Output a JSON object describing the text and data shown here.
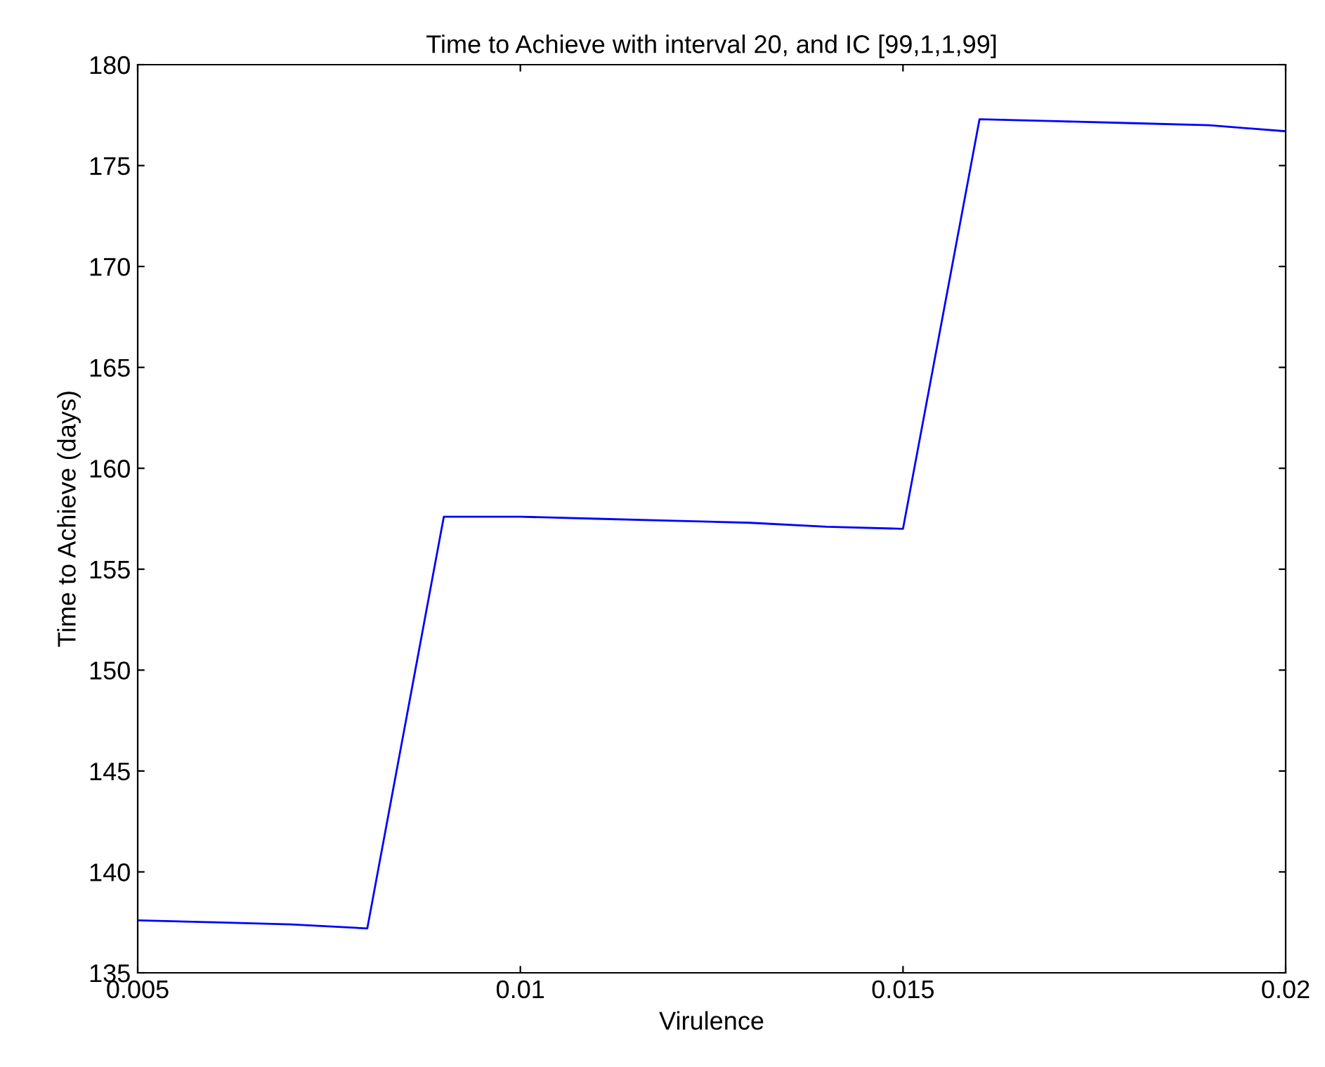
{
  "chart_data": {
    "type": "line",
    "title": "Time to Achieve with interval 20, and IC [99,1,1,99]",
    "xlabel": "Virulence",
    "ylabel": "Time to Achieve (days)",
    "x": [
      0.005,
      0.006,
      0.007,
      0.008,
      0.009,
      0.01,
      0.011,
      0.012,
      0.013,
      0.014,
      0.015,
      0.016,
      0.017,
      0.018,
      0.019,
      0.02
    ],
    "series": [
      {
        "color": "#0000ff",
        "values": [
          137.6,
          137.5,
          137.4,
          137.2,
          157.6,
          157.6,
          157.5,
          157.4,
          157.3,
          157.1,
          157.0,
          177.3,
          177.2,
          177.1,
          177.0,
          176.7
        ]
      }
    ],
    "xlim": [
      0.005,
      0.02
    ],
    "ylim": [
      135,
      180
    ],
    "xticks": [
      0.005,
      0.01,
      0.015,
      0.02
    ],
    "yticks": [
      135,
      140,
      145,
      150,
      155,
      160,
      165,
      170,
      175,
      180
    ],
    "grid": false,
    "legend": false,
    "marker": "none",
    "line_style": "solid"
  }
}
